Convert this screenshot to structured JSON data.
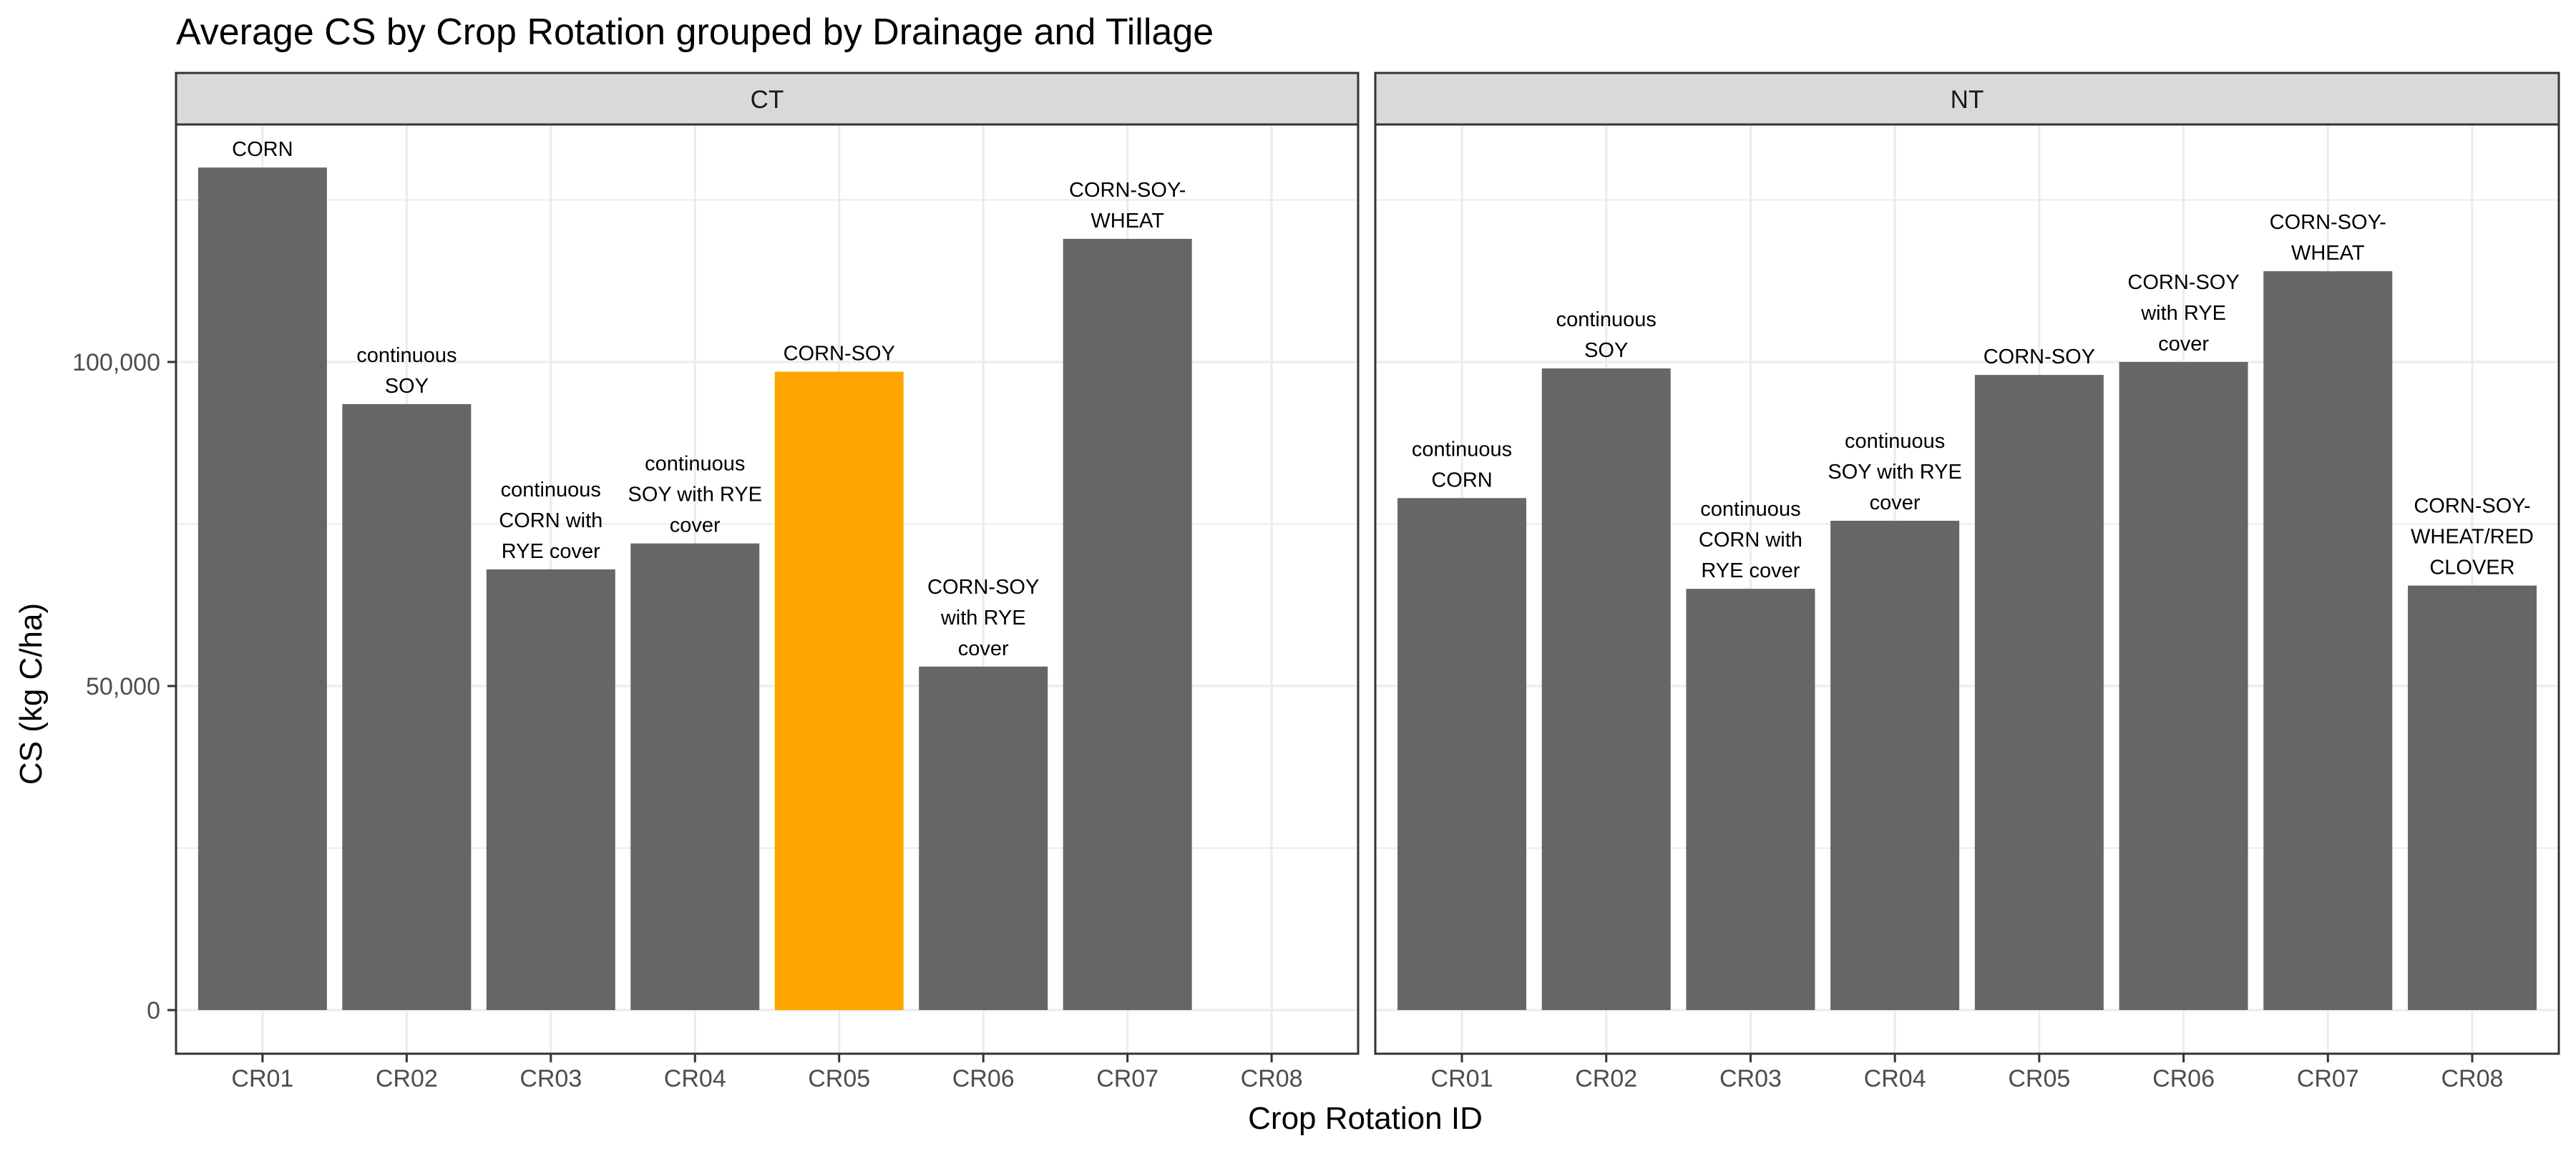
{
  "chart_data": {
    "type": "bar",
    "title": "Average CS by Crop Rotation grouped by Drainage and Tillage",
    "xlabel": "Crop Rotation ID",
    "ylabel": "CS (kg C/ha)",
    "ylim": [
      0,
      137000
    ],
    "yticks": [
      0,
      50000,
      100000
    ],
    "ytick_labels": [
      "0",
      "50,000",
      "100,000"
    ],
    "grid": true,
    "categories": [
      "CR01",
      "CR02",
      "CR03",
      "CR04",
      "CR05",
      "CR06",
      "CR07",
      "CR08"
    ],
    "colors": {
      "bar": "#666666",
      "highlight": "#FFA500",
      "strip": "#D9D9D9",
      "grid": "#EBEBEB"
    },
    "panels": [
      {
        "name": "CT",
        "bars": [
          {
            "category": "CR01",
            "value": 130000,
            "label": [
              "CORN"
            ]
          },
          {
            "category": "CR02",
            "value": 93500,
            "label": [
              "continuous",
              "SOY"
            ]
          },
          {
            "category": "CR03",
            "value": 68000,
            "label": [
              "continuous",
              "CORN with",
              "RYE cover"
            ]
          },
          {
            "category": "CR04",
            "value": 72000,
            "label": [
              "continuous",
              "SOY with RYE",
              "cover"
            ]
          },
          {
            "category": "CR05",
            "value": 98500,
            "label": [
              "CORN-SOY"
            ],
            "highlight": true
          },
          {
            "category": "CR06",
            "value": 53000,
            "label": [
              "CORN-SOY",
              "with RYE",
              "cover"
            ]
          },
          {
            "category": "CR07",
            "value": 119000,
            "label": [
              "CORN-SOY-",
              "WHEAT"
            ]
          }
        ]
      },
      {
        "name": "NT",
        "bars": [
          {
            "category": "CR01",
            "value": 79000,
            "label": [
              "continuous",
              "CORN"
            ]
          },
          {
            "category": "CR02",
            "value": 99000,
            "label": [
              "continuous",
              "SOY"
            ]
          },
          {
            "category": "CR03",
            "value": 65000,
            "label": [
              "continuous",
              "CORN with",
              "RYE cover"
            ]
          },
          {
            "category": "CR04",
            "value": 75500,
            "label": [
              "continuous",
              "SOY with RYE",
              "cover"
            ]
          },
          {
            "category": "CR05",
            "value": 98000,
            "label": [
              "CORN-SOY"
            ]
          },
          {
            "category": "CR06",
            "value": 100000,
            "label": [
              "CORN-SOY",
              "with RYE",
              "cover"
            ]
          },
          {
            "category": "CR07",
            "value": 114000,
            "label": [
              "CORN-SOY-",
              "WHEAT"
            ]
          },
          {
            "category": "CR08",
            "value": 65500,
            "label": [
              "CORN-SOY-",
              "WHEAT/RED",
              "CLOVER"
            ]
          }
        ]
      }
    ]
  }
}
